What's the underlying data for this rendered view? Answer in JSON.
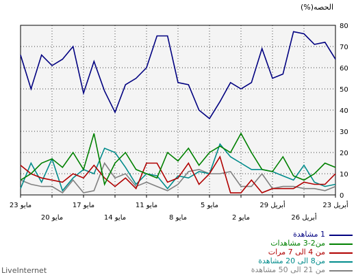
{
  "chart_data": {
    "type": "line",
    "ylabel": "الحصه(%)",
    "ylim": [
      0,
      80
    ],
    "yticks": [
      "0",
      "10",
      "20",
      "30",
      "40",
      "50",
      "60",
      "70",
      "80"
    ],
    "grid": true,
    "x_direction": "right-to-left",
    "xticks_upper": [
      {
        "i": 0,
        "label": "23 أبريل"
      },
      {
        "i": 6,
        "label": "29 أبريل"
      },
      {
        "i": 12,
        "label": "5 مايو"
      },
      {
        "i": 18,
        "label": "11 مايو"
      },
      {
        "i": 24,
        "label": "17 مايو"
      },
      {
        "i": 30,
        "label": "23 مايو"
      }
    ],
    "xticks_lower": [
      {
        "i": 3,
        "label": "26 أبريل"
      },
      {
        "i": 9,
        "label": "2 مايو"
      },
      {
        "i": 15,
        "label": "8 مايو"
      },
      {
        "i": 21,
        "label": "14 مايو"
      },
      {
        "i": 27,
        "label": "20 مايو"
      }
    ],
    "series": [
      {
        "name": "1 مشاهدة",
        "color": "#000080",
        "values": [
          64,
          72,
          71,
          76,
          77,
          57,
          55,
          69,
          53,
          50,
          53,
          44,
          36,
          40,
          52,
          53,
          75,
          75,
          60,
          55,
          52,
          39,
          49,
          63,
          48,
          70,
          64,
          61,
          66,
          50,
          66
        ]
      },
      {
        "name": "من2-3 مشاهدات",
        "color": "#008000",
        "values": [
          13,
          15,
          10,
          7,
          9,
          18,
          11,
          12,
          20,
          29,
          20,
          23,
          20,
          14,
          22,
          16,
          20,
          8,
          10,
          12,
          20,
          15,
          5,
          29,
          12,
          20,
          13,
          17,
          15,
          10,
          7
        ]
      },
      {
        "name": "من 4 الى 7 مرات",
        "color": "#b00000",
        "values": [
          10,
          5,
          5,
          6,
          3,
          3,
          3,
          1,
          7,
          1,
          1,
          18,
          10,
          5,
          15,
          8,
          6,
          15,
          15,
          3,
          8,
          4,
          8,
          14,
          8,
          10,
          6,
          7,
          8,
          10,
          14
        ]
      },
      {
        "name": "من8 الى 20 مشاهدة",
        "color": "#008b8b",
        "values": [
          5,
          4,
          6,
          14,
          7,
          9,
          11,
          12,
          12,
          15,
          18,
          24,
          10,
          11,
          8,
          9,
          3,
          9,
          10,
          5,
          13,
          20,
          22,
          10,
          12,
          8,
          2,
          17,
          6,
          15,
          3
        ]
      },
      {
        "name": "من 21 الى 50 مشاهدة",
        "color": "#808080",
        "values": [
          4,
          2,
          3,
          3,
          4,
          4,
          3,
          10,
          4,
          4,
          11,
          10,
          10,
          12,
          11,
          5,
          2,
          4,
          6,
          4,
          10,
          8,
          15,
          2,
          1,
          7,
          1,
          4,
          4,
          5,
          7
        ]
      }
    ]
  },
  "watermark": "LiveInternet"
}
